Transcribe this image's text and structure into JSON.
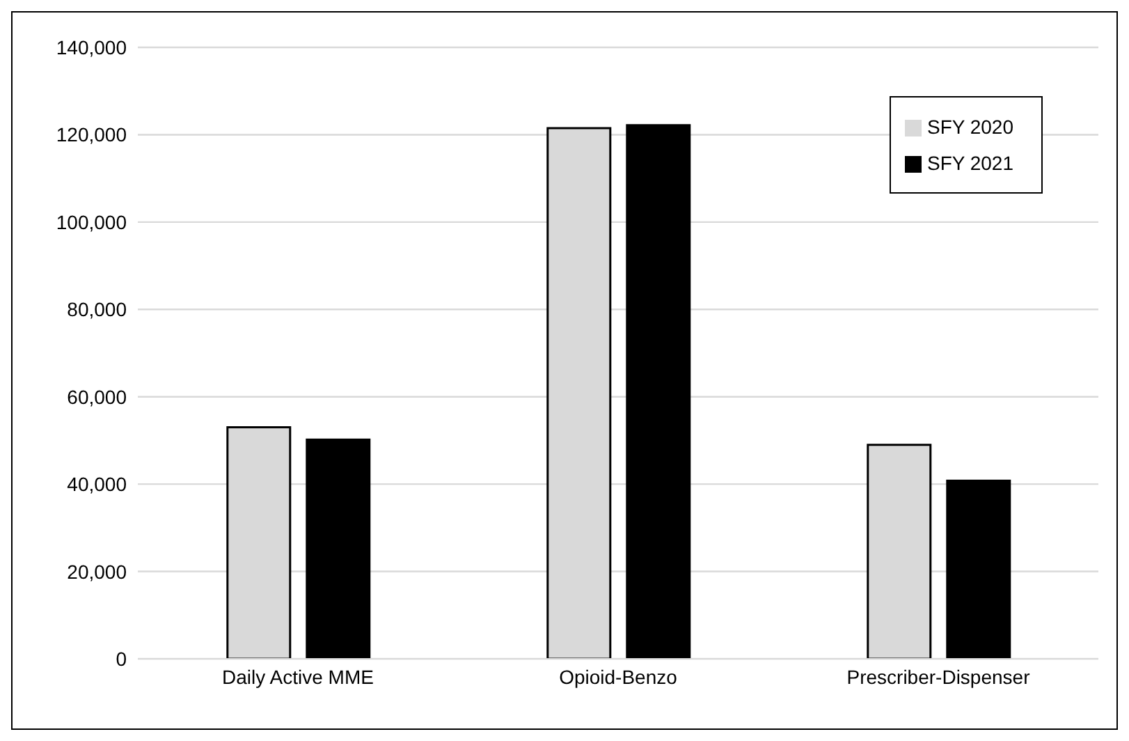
{
  "chart_data": {
    "type": "bar",
    "categories": [
      "Daily Active MME",
      "Opioid-Benzo",
      "Prescriber-Dispenser"
    ],
    "series": [
      {
        "name": "SFY 2020",
        "color": "#d9d9d9",
        "values": [
          53000,
          121500,
          49000
        ]
      },
      {
        "name": "SFY 2021",
        "color": "#000000",
        "values": [
          50200,
          122200,
          40800
        ]
      }
    ],
    "ylim": [
      0,
      140000
    ],
    "yticks": [
      0,
      {
        "value": 20000,
        "label": "20,000"
      },
      {
        "value": 40000,
        "label": "40,000"
      },
      {
        "value": 60000,
        "label": "60,000"
      },
      {
        "value": 80000,
        "label": "80,000"
      },
      {
        "value": 100000,
        "label": "100,000"
      },
      {
        "value": 120000,
        "label": "120,000"
      },
      {
        "value": 140000,
        "label": "140,000"
      }
    ],
    "grid": "y",
    "legend": "top right"
  }
}
